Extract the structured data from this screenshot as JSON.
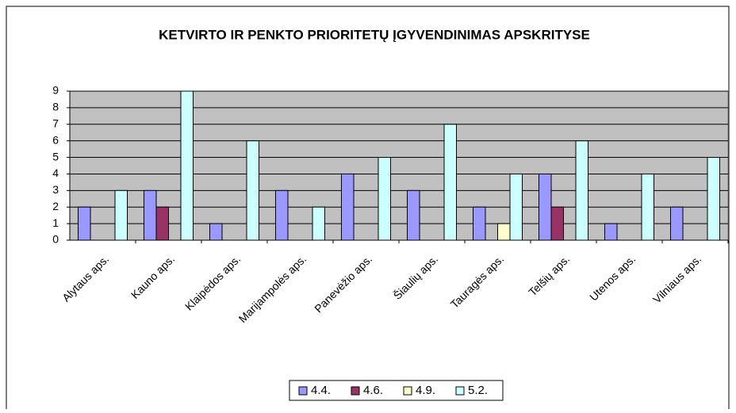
{
  "chart_data": {
    "type": "bar",
    "title": "KETVIRTO IR PENKTO PRIORITETŲ ĮGYVENDINIMAS APSKRITYSE",
    "categories": [
      "Alytaus aps.",
      "Kauno aps.",
      "Klaipėdos aps.",
      "Marijampolės aps.",
      "Panevėžio aps.",
      "Šiaulių aps.",
      "Tauragės aps.",
      "Telšių aps.",
      "Utenos aps.",
      "Vilniaus aps."
    ],
    "series": [
      {
        "name": "4.4.",
        "color": "#9999ff",
        "values": [
          2,
          3,
          1,
          3,
          4,
          3,
          2,
          4,
          1,
          2
        ]
      },
      {
        "name": "4.6.",
        "color": "#993366",
        "values": [
          null,
          2,
          null,
          null,
          null,
          null,
          null,
          2,
          null,
          null
        ]
      },
      {
        "name": "4.9.",
        "color": "#ffffcc",
        "values": [
          null,
          null,
          null,
          null,
          null,
          null,
          1,
          null,
          null,
          null
        ]
      },
      {
        "name": "5.2.",
        "color": "#ccffff",
        "values": [
          3,
          9,
          6,
          2,
          5,
          7,
          4,
          6,
          4,
          5
        ]
      }
    ],
    "ylim": [
      0,
      9
    ],
    "yticks": [
      0,
      1,
      2,
      3,
      4,
      5,
      6,
      7,
      8,
      9
    ],
    "grid": true,
    "legend": "bottom"
  }
}
